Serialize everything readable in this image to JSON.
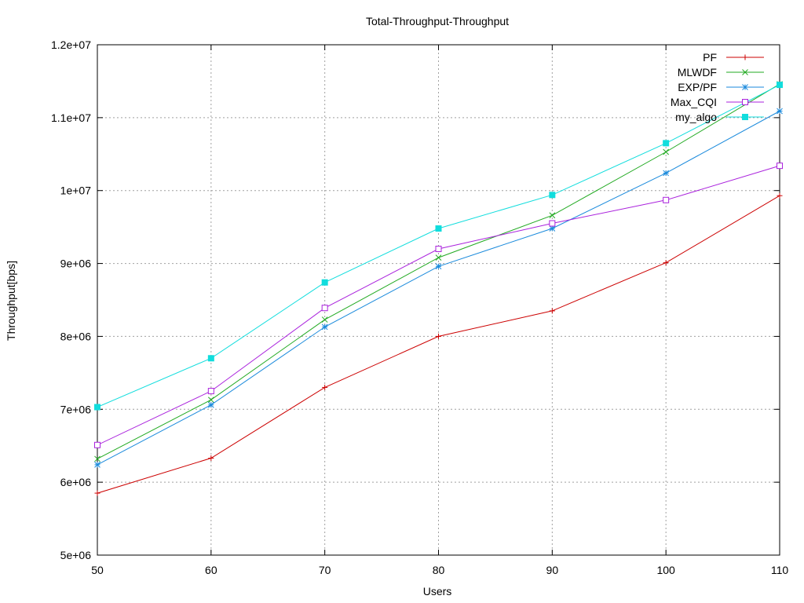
{
  "chart_data": {
    "type": "line",
    "title": "Total-Throughput-Throughput",
    "xlabel": "Users",
    "ylabel": "Throughput[bps]",
    "x": [
      50,
      60,
      70,
      80,
      90,
      100,
      110
    ],
    "xlim": [
      50,
      110
    ],
    "ylim": [
      5000000,
      12000000
    ],
    "x_ticks": [
      50,
      60,
      70,
      80,
      90,
      100,
      110
    ],
    "y_ticks": [
      5000000,
      6000000,
      7000000,
      8000000,
      9000000,
      10000000,
      11000000,
      12000000
    ],
    "x_tick_labels": [
      "50",
      "60",
      "70",
      "80",
      "90",
      "100",
      "110"
    ],
    "y_tick_labels": [
      "5e+06",
      "6e+06",
      "7e+06",
      "8e+06",
      "9e+06",
      "1e+07",
      "1.1e+07",
      "1.2e+07"
    ],
    "grid": true,
    "legend_position": "top-right",
    "series": [
      {
        "name": "PF",
        "color": "#cc0000",
        "marker": "plus",
        "values": [
          5850000,
          6330000,
          7300000,
          8000000,
          8350000,
          9010000,
          9930000
        ]
      },
      {
        "name": "MLWDF",
        "color": "#22aa22",
        "marker": "cross",
        "values": [
          6320000,
          7130000,
          8230000,
          9080000,
          9660000,
          10530000,
          11460000
        ]
      },
      {
        "name": "EXP/PF",
        "color": "#1a8adc",
        "marker": "star",
        "values": [
          6240000,
          7060000,
          8130000,
          8960000,
          9480000,
          10240000,
          11090000
        ]
      },
      {
        "name": "Max_CQI",
        "color": "#aa22dd",
        "marker": "open-square",
        "values": [
          6510000,
          7250000,
          8390000,
          9200000,
          9550000,
          9870000,
          10340000
        ]
      },
      {
        "name": "my_algo",
        "color": "#11dddd",
        "marker": "filled-square",
        "values": [
          7030000,
          7700000,
          8740000,
          9480000,
          9940000,
          10650000,
          11450000
        ]
      }
    ]
  }
}
